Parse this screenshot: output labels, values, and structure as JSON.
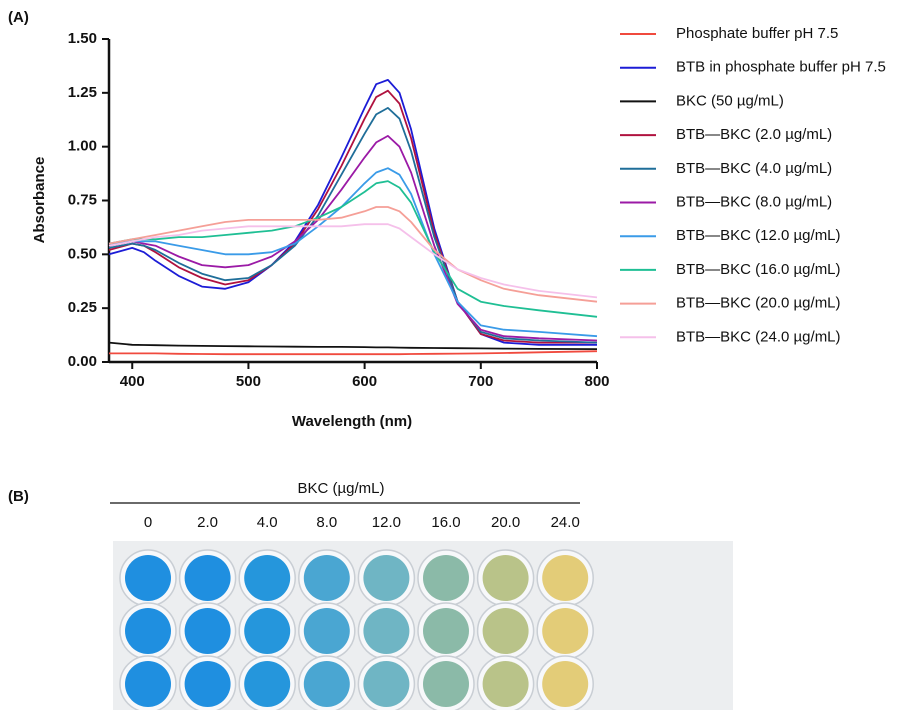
{
  "chart_data": {
    "type": "line",
    "panel_label": "(A)",
    "x_label": "Wavelength (nm)",
    "y_label": "Absorbance",
    "x": [
      380,
      400,
      410,
      420,
      440,
      460,
      480,
      500,
      520,
      540,
      560,
      580,
      600,
      610,
      620,
      630,
      640,
      660,
      680,
      700,
      720,
      750,
      800
    ],
    "xlim": [
      380,
      800
    ],
    "xticks": [
      400,
      500,
      600,
      700,
      800
    ],
    "ylim": [
      0,
      1.5
    ],
    "yticks": [
      {
        "value": 0,
        "label": "0.00"
      },
      {
        "value": 0.25,
        "label": "0.25"
      },
      {
        "value": 0.5,
        "label": "0.50"
      },
      {
        "value": 0.75,
        "label": "0.75"
      },
      {
        "value": 1,
        "label": "1.00"
      },
      {
        "value": 1.25,
        "label": "1.25"
      },
      {
        "value": 1.5,
        "label": "1.50"
      }
    ],
    "grid": false,
    "legend": "right",
    "series": [
      {
        "name": "Phosphate buffer pH 7.5",
        "color": "#f04a3e",
        "values": [
          0.04,
          0.04,
          0.04,
          0.04,
          0.038,
          0.037,
          0.036,
          0.036,
          0.036,
          0.036,
          0.036,
          0.036,
          0.036,
          0.036,
          0.036,
          0.036,
          0.037,
          0.038,
          0.039,
          0.04,
          0.042,
          0.045,
          0.05
        ]
      },
      {
        "name": "BTB in phosphate buffer pH 7.5",
        "color": "#1c1cd6",
        "values": [
          0.5,
          0.53,
          0.51,
          0.47,
          0.4,
          0.35,
          0.34,
          0.37,
          0.45,
          0.56,
          0.73,
          0.95,
          1.18,
          1.29,
          1.31,
          1.25,
          1.08,
          0.62,
          0.28,
          0.13,
          0.09,
          0.08,
          0.08
        ]
      },
      {
        "name": "BKC (50 µg/mL)",
        "color": "#111111",
        "values": [
          0.09,
          0.08,
          0.079,
          0.078,
          0.076,
          0.075,
          0.074,
          0.073,
          0.072,
          0.071,
          0.07,
          0.07,
          0.069,
          0.068,
          0.068,
          0.067,
          0.066,
          0.065,
          0.064,
          0.063,
          0.062,
          0.061,
          0.06
        ]
      },
      {
        "name": "BTB—BKC (2.0 µg/mL)",
        "color": "#b0123f",
        "values": [
          0.52,
          0.55,
          0.54,
          0.51,
          0.44,
          0.39,
          0.36,
          0.38,
          0.45,
          0.55,
          0.71,
          0.91,
          1.13,
          1.23,
          1.26,
          1.2,
          1.04,
          0.6,
          0.28,
          0.13,
          0.1,
          0.09,
          0.09
        ]
      },
      {
        "name": "BTB—BKC (4.0 µg/mL)",
        "color": "#1f6e99",
        "values": [
          0.53,
          0.55,
          0.54,
          0.52,
          0.46,
          0.41,
          0.38,
          0.39,
          0.45,
          0.54,
          0.68,
          0.87,
          1.06,
          1.15,
          1.18,
          1.13,
          0.98,
          0.58,
          0.28,
          0.14,
          0.11,
          0.1,
          0.09
        ]
      },
      {
        "name": "BTB—BKC (8.0 µg/mL)",
        "color": "#9b1aa6",
        "values": [
          0.54,
          0.56,
          0.55,
          0.54,
          0.49,
          0.45,
          0.44,
          0.45,
          0.49,
          0.56,
          0.66,
          0.8,
          0.95,
          1.02,
          1.05,
          1.0,
          0.88,
          0.54,
          0.27,
          0.15,
          0.12,
          0.11,
          0.1
        ]
      },
      {
        "name": "BTB—BKC (12.0 µg/mL)",
        "color": "#3a9be8",
        "values": [
          0.55,
          0.56,
          0.56,
          0.56,
          0.54,
          0.52,
          0.5,
          0.5,
          0.51,
          0.55,
          0.63,
          0.72,
          0.83,
          0.88,
          0.9,
          0.87,
          0.78,
          0.5,
          0.28,
          0.17,
          0.15,
          0.14,
          0.12
        ]
      },
      {
        "name": "BTB—BKC (16.0 µg/mL)",
        "color": "#1fbf94",
        "values": [
          0.55,
          0.57,
          0.57,
          0.57,
          0.58,
          0.58,
          0.59,
          0.6,
          0.61,
          0.63,
          0.67,
          0.72,
          0.79,
          0.83,
          0.84,
          0.81,
          0.74,
          0.51,
          0.34,
          0.28,
          0.26,
          0.24,
          0.21
        ]
      },
      {
        "name": "BTB—BKC (20.0 µg/mL)",
        "color": "#f59f97",
        "values": [
          0.55,
          0.57,
          0.58,
          0.59,
          0.61,
          0.63,
          0.65,
          0.66,
          0.66,
          0.66,
          0.66,
          0.67,
          0.7,
          0.72,
          0.72,
          0.7,
          0.65,
          0.52,
          0.43,
          0.38,
          0.34,
          0.31,
          0.28
        ]
      },
      {
        "name": "BTB—BKC (24.0 µg/mL)",
        "color": "#f5c0ea",
        "values": [
          0.54,
          0.56,
          0.57,
          0.58,
          0.59,
          0.61,
          0.62,
          0.63,
          0.63,
          0.63,
          0.63,
          0.63,
          0.64,
          0.64,
          0.64,
          0.62,
          0.58,
          0.5,
          0.43,
          0.39,
          0.36,
          0.33,
          0.3
        ]
      }
    ]
  },
  "panel_b": {
    "label": "(B)",
    "header": "BKC (µg/mL)",
    "columns": [
      "0",
      "2.0",
      "4.0",
      "8.0",
      "12.0",
      "16.0",
      "20.0",
      "24.0"
    ],
    "well_colors": [
      "#1f8fe0",
      "#1f8fe0",
      "#2596dc",
      "#4aa6d2",
      "#6fb5c4",
      "#8bbaa8",
      "#b9c389",
      "#e3cc78"
    ]
  }
}
